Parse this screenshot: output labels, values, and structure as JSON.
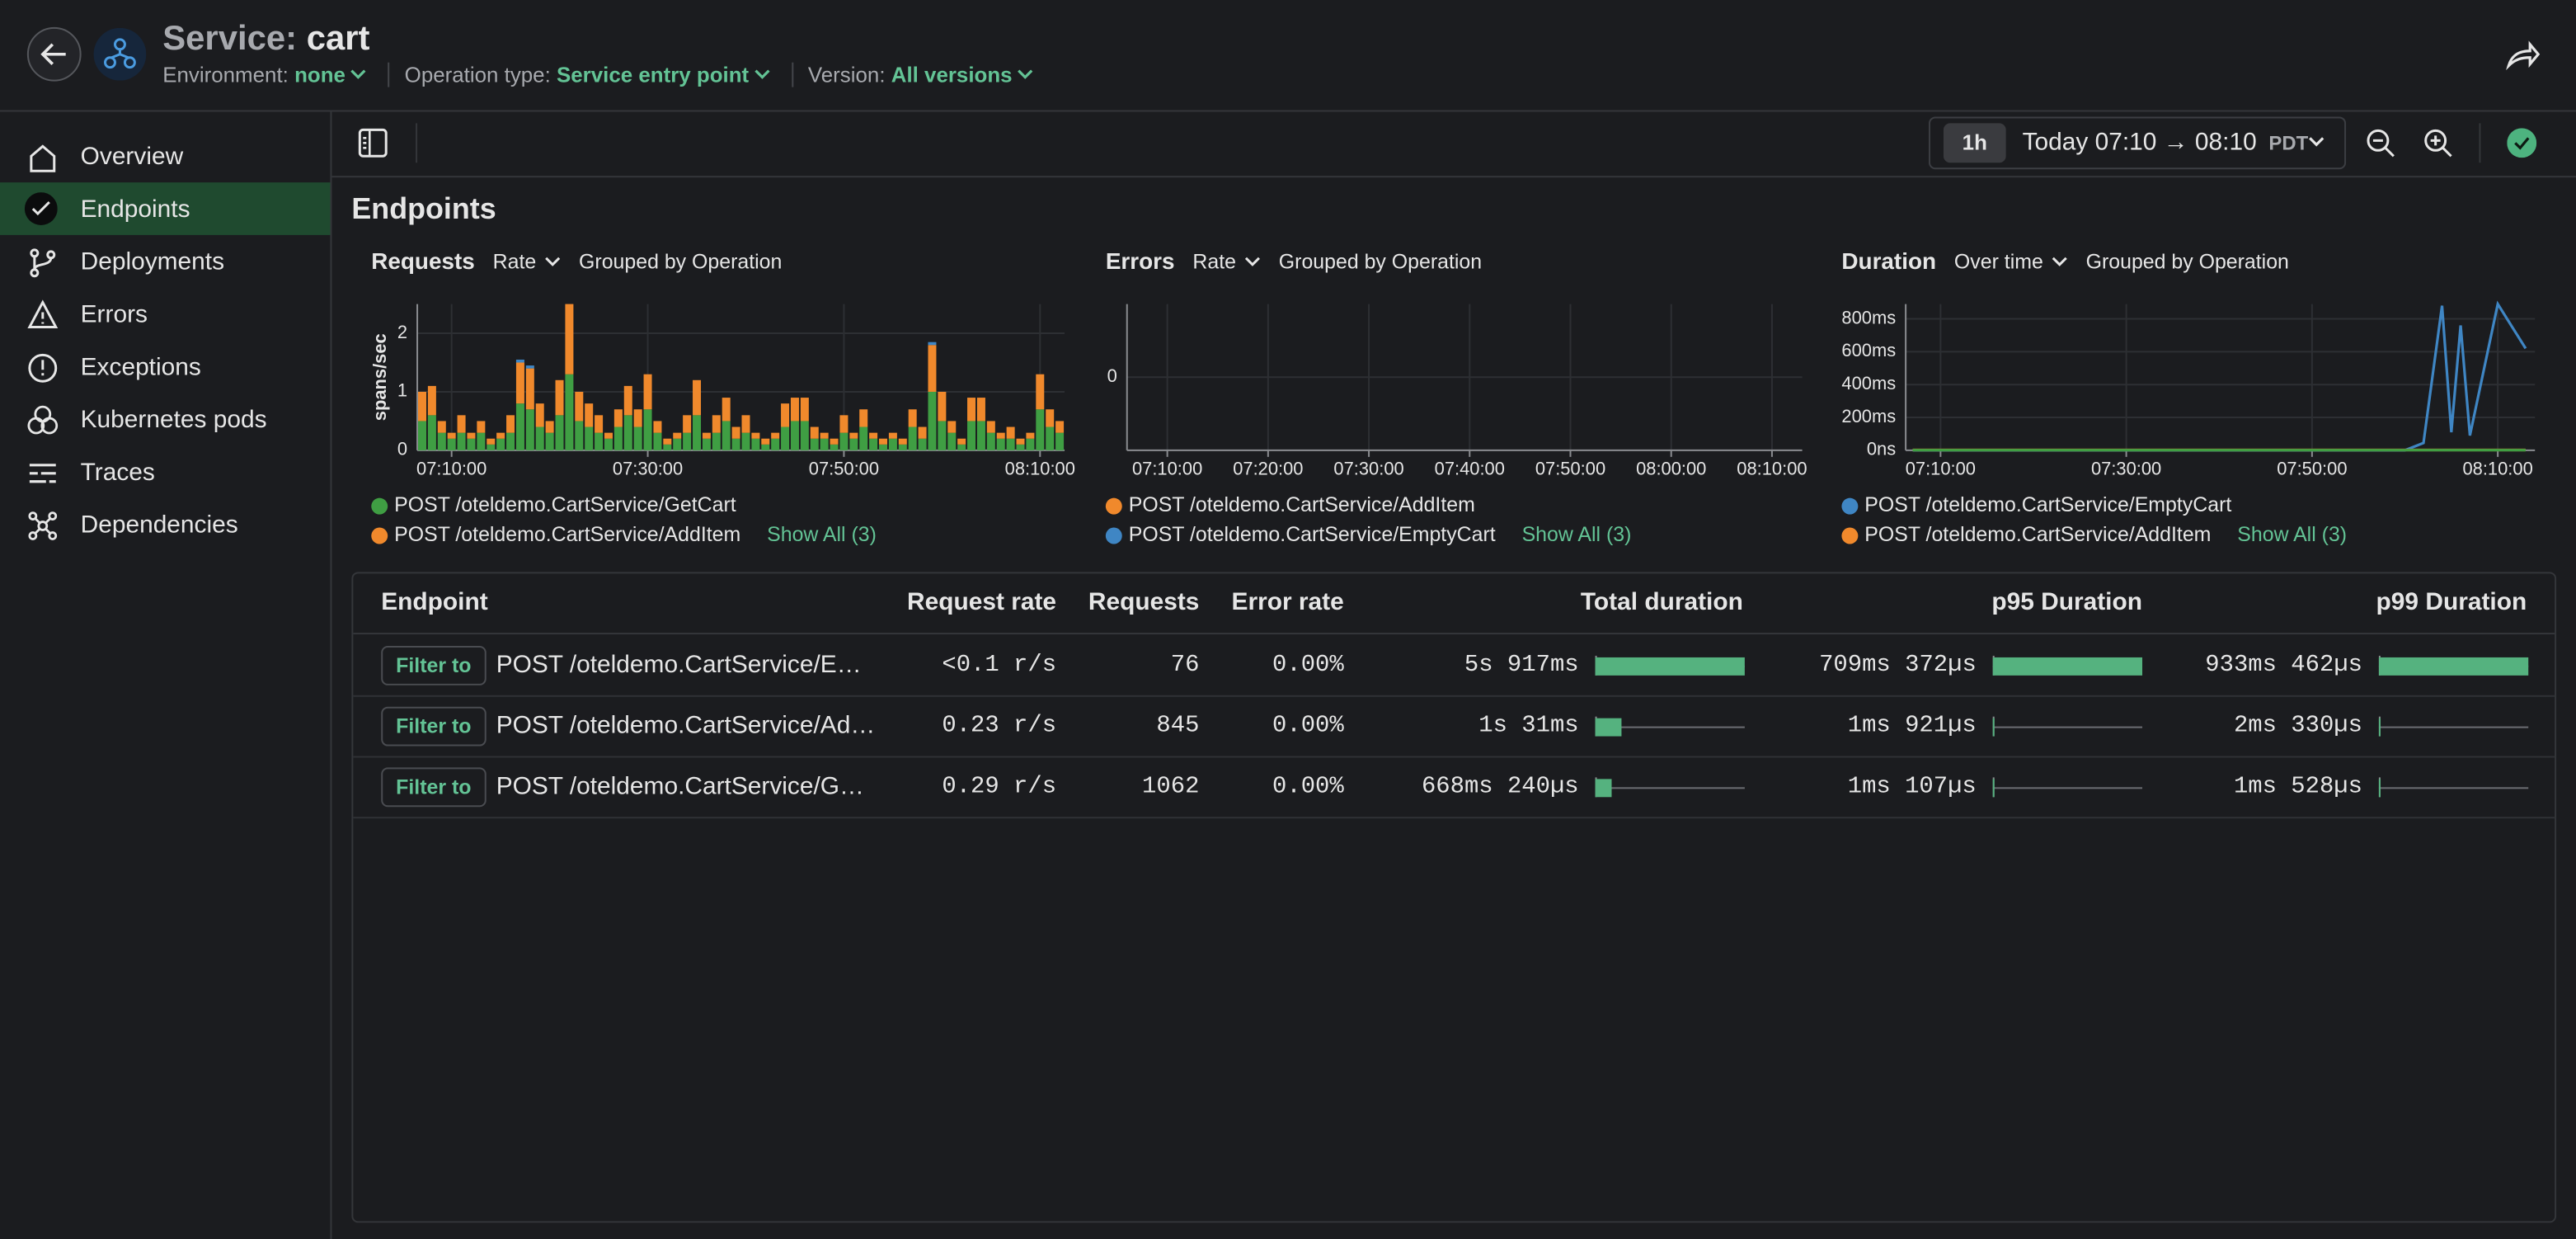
{
  "header": {
    "title_prefix": "Service:",
    "title": "cart",
    "env_label": "Environment:",
    "env_value": "none",
    "op_label": "Operation type:",
    "op_value": "Service entry point",
    "version_label": "Version:",
    "version_value": "All versions"
  },
  "sidebar": {
    "items": [
      "Overview",
      "Endpoints",
      "Deployments",
      "Errors",
      "Exceptions",
      "Kubernetes pods",
      "Traces",
      "Dependencies"
    ]
  },
  "toolbar": {
    "range_preset": "1h",
    "range": "Today 07:10 → 08:10",
    "timezone": "PDT"
  },
  "page_title": "Endpoints",
  "chart_data": [
    {
      "type": "bar",
      "stacked": true,
      "title": "Requests",
      "mode": "Rate",
      "grouping": "Grouped by Operation",
      "ylabel": "spans/sec",
      "x": [
        "07:07:00",
        "07:08:00",
        "07:09:00",
        "07:10:00",
        "07:11:00",
        "07:12:00",
        "07:13:00",
        "07:14:00",
        "07:15:00",
        "07:16:00",
        "07:17:00",
        "07:18:00",
        "07:19:00",
        "07:20:00",
        "07:21:00",
        "07:22:00",
        "07:23:00",
        "07:24:00",
        "07:25:00",
        "07:26:00",
        "07:27:00",
        "07:28:00",
        "07:29:00",
        "07:30:00",
        "07:31:00",
        "07:32:00",
        "07:33:00",
        "07:34:00",
        "07:35:00",
        "07:36:00",
        "07:37:00",
        "07:38:00",
        "07:39:00",
        "07:40:00",
        "07:41:00",
        "07:42:00",
        "07:43:00",
        "07:44:00",
        "07:45:00",
        "07:46:00",
        "07:47:00",
        "07:48:00",
        "07:49:00",
        "07:50:00",
        "07:51:00",
        "07:52:00",
        "07:53:00",
        "07:54:00",
        "07:55:00",
        "07:56:00",
        "07:57:00",
        "07:58:00",
        "07:59:00",
        "08:00:00",
        "08:01:00",
        "08:02:00",
        "08:03:00",
        "08:04:00",
        "08:05:00",
        "08:06:00",
        "08:07:00",
        "08:08:00",
        "08:09:00",
        "08:10:00",
        "08:11:00",
        "08:12:00"
      ],
      "xlim": [
        "07:06:30",
        "08:12:30"
      ],
      "xticks": [
        "07:10:00",
        "07:30:00",
        "07:50:00",
        "08:10:00"
      ],
      "ylim": [
        0,
        2.5
      ],
      "yticks": [
        0,
        1,
        2
      ],
      "grid": true,
      "legend_shown": 2,
      "show_all": "Show All (3)",
      "series": [
        {
          "name": "POST /oteldemo.CartService/GetCart",
          "color": "#3f9e43",
          "values": [
            0.5,
            0.6,
            0.3,
            0.2,
            0.3,
            0.2,
            0.3,
            0.1,
            0.2,
            0.3,
            0.8,
            0.7,
            0.4,
            0.3,
            0.6,
            1.3,
            0.5,
            0.4,
            0.3,
            0.2,
            0.4,
            0.6,
            0.4,
            0.7,
            0.3,
            0.1,
            0.2,
            0.3,
            0.6,
            0.2,
            0.3,
            0.5,
            0.2,
            0.3,
            0.2,
            0.1,
            0.2,
            0.4,
            0.5,
            0.5,
            0.2,
            0.2,
            0.1,
            0.3,
            0.2,
            0.4,
            0.2,
            0.1,
            0.2,
            0.1,
            0.4,
            0.2,
            1.0,
            0.5,
            0.3,
            0.1,
            0.5,
            0.5,
            0.3,
            0.2,
            0.2,
            0.1,
            0.2,
            0.7,
            0.4,
            0.3
          ]
        },
        {
          "name": "POST /oteldemo.CartService/AddItem",
          "color": "#f0892c",
          "values": [
            0.5,
            0.5,
            0.2,
            0.1,
            0.3,
            0.1,
            0.2,
            0.1,
            0.1,
            0.3,
            0.7,
            0.7,
            0.4,
            0.2,
            0.6,
            1.2,
            0.5,
            0.4,
            0.3,
            0.1,
            0.3,
            0.5,
            0.3,
            0.6,
            0.2,
            0.1,
            0.1,
            0.3,
            0.6,
            0.1,
            0.3,
            0.4,
            0.2,
            0.3,
            0.1,
            0.1,
            0.1,
            0.4,
            0.4,
            0.4,
            0.2,
            0.1,
            0.1,
            0.3,
            0.1,
            0.3,
            0.1,
            0.1,
            0.1,
            0.1,
            0.3,
            0.2,
            0.8,
            0.5,
            0.2,
            0.1,
            0.4,
            0.4,
            0.2,
            0.1,
            0.2,
            0.1,
            0.1,
            0.6,
            0.3,
            0.2
          ]
        },
        {
          "name": "POST /oteldemo.CartService/EmptyCart",
          "color": "#3f86c4",
          "values": [
            0,
            0,
            0,
            0,
            0,
            0,
            0,
            0,
            0,
            0,
            0.05,
            0.05,
            0,
            0,
            0,
            0,
            0,
            0,
            0,
            0,
            0,
            0,
            0,
            0,
            0,
            0,
            0,
            0,
            0,
            0,
            0,
            0,
            0,
            0,
            0,
            0,
            0,
            0,
            0,
            0,
            0,
            0,
            0,
            0,
            0,
            0,
            0,
            0,
            0,
            0,
            0,
            0,
            0.05,
            0,
            0,
            0,
            0,
            0,
            0,
            0,
            0,
            0,
            0,
            0,
            0,
            0
          ]
        }
      ]
    },
    {
      "type": "line",
      "title": "Errors",
      "mode": "Rate",
      "grouping": "Grouped by Operation",
      "xlim": [
        "07:06:00",
        "08:13:00"
      ],
      "xticks": [
        "07:10:00",
        "07:20:00",
        "07:30:00",
        "07:40:00",
        "07:50:00",
        "08:00:00",
        "08:10:00"
      ],
      "ylim": [
        -1,
        1
      ],
      "yticks": [
        0
      ],
      "grid": true,
      "legend_shown": 2,
      "show_all": "Show All (3)",
      "series": [
        {
          "name": "POST /oteldemo.CartService/AddItem",
          "color": "#f0892c"
        },
        {
          "name": "POST /oteldemo.CartService/EmptyCart",
          "color": "#3f86c4"
        }
      ]
    },
    {
      "type": "line",
      "title": "Duration",
      "mode": "Over time",
      "grouping": "Grouped by Operation",
      "xlim": [
        "07:06:15",
        "08:14:00"
      ],
      "xticks": [
        "07:10:00",
        "07:30:00",
        "07:50:00",
        "08:10:00"
      ],
      "ylim": [
        0,
        890
      ],
      "yticks": [
        {
          "value": 0,
          "label": "0ns"
        },
        {
          "value": 200,
          "label": "200ms"
        },
        {
          "value": 400,
          "label": "400ms"
        },
        {
          "value": 600,
          "label": "600ms"
        },
        {
          "value": 800,
          "label": "800ms"
        }
      ],
      "grid": true,
      "legend_shown": 2,
      "show_all": "Show All (3)",
      "series": [
        {
          "name": "POST /oteldemo.CartService/EmptyCart",
          "color": "#3f86c4",
          "x": [
            "07:07:00",
            "07:59:00",
            "08:00:00",
            "08:02:00",
            "08:04:00",
            "08:05:00",
            "08:06:00",
            "08:07:00",
            "08:10:00",
            "08:12:00",
            "08:13:00"
          ],
          "values": [
            0,
            0,
            0,
            45,
            880,
            110,
            760,
            90,
            890,
            710,
            620
          ]
        },
        {
          "name": "POST /oteldemo.CartService/AddItem",
          "color": "#f0892c",
          "x": [
            "07:07:00",
            "08:13:00"
          ],
          "values": [
            2,
            2
          ]
        },
        {
          "name": "POST /oteldemo.CartService/GetCart",
          "color": "#3f9e43",
          "x": [
            "07:07:00",
            "08:13:00"
          ],
          "values": [
            1,
            1
          ]
        }
      ]
    }
  ],
  "table": {
    "columns": [
      "Endpoint",
      "Request rate",
      "Requests",
      "Error rate",
      "Total duration",
      "p95 Duration",
      "p99 Duration"
    ],
    "filter_button": "Filter to",
    "rows": [
      {
        "endpoint": "POST /oteldemo.CartService/EmptyCart",
        "request_rate": "<0.1 r/s",
        "requests": 76,
        "error_rate": "0.00%",
        "total_duration": {
          "value": 5917,
          "label": "5s 917ms"
        },
        "p95_duration": {
          "value": 709.372,
          "label": "709ms 372µs"
        },
        "p99_duration": {
          "value": 933.462,
          "label": "933ms 462µs"
        }
      },
      {
        "endpoint": "POST /oteldemo.CartService/AddItem",
        "request_rate": "0.23 r/s",
        "requests": 845,
        "error_rate": "0.00%",
        "total_duration": {
          "value": 1031,
          "label": "1s 31ms"
        },
        "p95_duration": {
          "value": 1.921,
          "label": "1ms 921µs"
        },
        "p99_duration": {
          "value": 2.33,
          "label": "2ms 330µs"
        }
      },
      {
        "endpoint": "POST /oteldemo.CartService/GetCart",
        "request_rate": "0.29 r/s",
        "requests": 1062,
        "error_rate": "0.00%",
        "total_duration": {
          "value": 668.24,
          "label": "668ms 240µs"
        },
        "p95_duration": {
          "value": 1.107,
          "label": "1ms 107µs"
        },
        "p99_duration": {
          "value": 1.528,
          "label": "1ms 528µs"
        }
      }
    ]
  }
}
